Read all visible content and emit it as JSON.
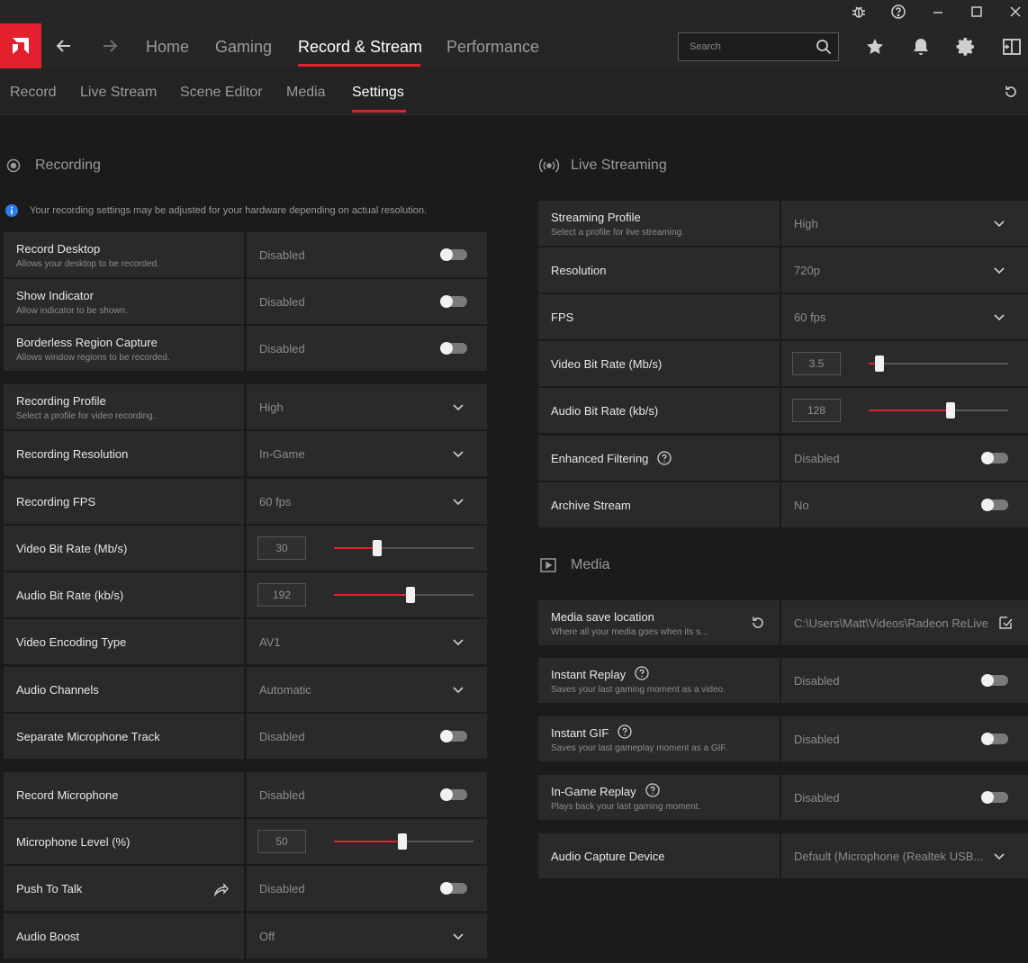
{
  "header": {
    "nav": [
      {
        "label": "Home"
      },
      {
        "label": "Gaming"
      },
      {
        "label": "Record & Stream"
      },
      {
        "label": "Performance"
      }
    ],
    "active_nav": "Record & Stream",
    "search_placeholder": "Search"
  },
  "subtabs": [
    {
      "label": "Record"
    },
    {
      "label": "Live Stream"
    },
    {
      "label": "Scene Editor"
    },
    {
      "label": "Media"
    },
    {
      "label": "Settings"
    }
  ],
  "active_subtab": "Settings",
  "recording": {
    "heading": "Recording",
    "info": "Your recording settings may be adjusted for your hardware depending on actual resolution.",
    "rows": [
      {
        "title": "Record Desktop",
        "desc": "Allows your desktop to be recorded.",
        "value": "Disabled",
        "control": "toggle"
      },
      {
        "title": "Show Indicator",
        "desc": "Allow indicator to be shown.",
        "value": "Disabled",
        "control": "toggle"
      },
      {
        "title": "Borderless Region Capture",
        "desc": "Allows window regions to be recorded.",
        "value": "Disabled",
        "control": "toggle"
      },
      {
        "title": "Recording Profile",
        "desc": "Select a profile for video recording.",
        "value": "High",
        "control": "dropdown"
      },
      {
        "title": "Recording Resolution",
        "desc": "",
        "value": "In-Game",
        "control": "dropdown"
      },
      {
        "title": "Recording FPS",
        "desc": "",
        "value": "60 fps",
        "control": "dropdown"
      },
      {
        "title": "Video Bit Rate (Mb/s)",
        "desc": "",
        "value": "30",
        "control": "slider",
        "level": 0.31
      },
      {
        "title": "Audio Bit Rate (kb/s)",
        "desc": "",
        "value": "192",
        "control": "slider",
        "level": 0.55
      },
      {
        "title": "Video Encoding Type",
        "desc": "",
        "value": "AV1",
        "control": "dropdown"
      },
      {
        "title": "Audio Channels",
        "desc": "",
        "value": "Automatic",
        "control": "dropdown"
      },
      {
        "title": "Separate Microphone Track",
        "desc": "",
        "value": "Disabled",
        "control": "toggle"
      },
      {
        "title": "Record Microphone",
        "desc": "",
        "value": "Disabled",
        "control": "toggle"
      },
      {
        "title": "Microphone Level (%)",
        "desc": "",
        "value": "50",
        "control": "slider",
        "level": 0.49
      },
      {
        "title": "Push To Talk",
        "desc": "",
        "value": "Disabled",
        "control": "toggle",
        "icon": "share-arrow-icon"
      },
      {
        "title": "Audio Boost",
        "desc": "",
        "value": "Off",
        "control": "dropdown"
      }
    ]
  },
  "streaming": {
    "heading": "Live Streaming",
    "rows": [
      {
        "title": "Streaming Profile",
        "desc": "Select a profile for live streaming.",
        "value": "High",
        "control": "dropdown"
      },
      {
        "title": "Resolution",
        "desc": "",
        "value": "720p",
        "control": "dropdown"
      },
      {
        "title": "FPS",
        "desc": "",
        "value": "60 fps",
        "control": "dropdown"
      },
      {
        "title": "Video Bit Rate (Mb/s)",
        "desc": "",
        "value": "3.5",
        "control": "slider",
        "level": 0.08
      },
      {
        "title": "Audio Bit Rate (kb/s)",
        "desc": "",
        "value": "128",
        "control": "slider",
        "level": 0.59
      },
      {
        "title": "Enhanced Filtering",
        "desc": "",
        "value": "Disabled",
        "control": "toggle",
        "help": true
      },
      {
        "title": "Archive Stream",
        "desc": "",
        "value": "No",
        "control": "toggle"
      }
    ]
  },
  "media": {
    "heading": "Media",
    "rows": [
      {
        "title": "Media save location",
        "desc": "Where all your media goes when its s...",
        "value": "C:\\Users\\Matt\\Videos\\Radeon ReLive",
        "control": "folder"
      },
      {
        "title": "Instant Replay",
        "desc": "Saves your last gaming moment as a video.",
        "value": "Disabled",
        "control": "toggle",
        "help": true
      },
      {
        "title": "Instant GIF",
        "desc": "Saves your last gameplay moment as a GIF.",
        "value": "Disabled",
        "control": "toggle",
        "help": true
      },
      {
        "title": "In-Game Replay",
        "desc": "Plays back your last gaming moment.",
        "value": "Disabled",
        "control": "toggle",
        "help": true
      },
      {
        "title": "Audio Capture Device",
        "desc": "",
        "value": "Default (Microphone (Realtek USB...",
        "control": "dropdown"
      }
    ]
  },
  "colors": {
    "accent": "#e4202e",
    "panel": "#2a2a2a",
    "background": "#1b1b1b"
  }
}
